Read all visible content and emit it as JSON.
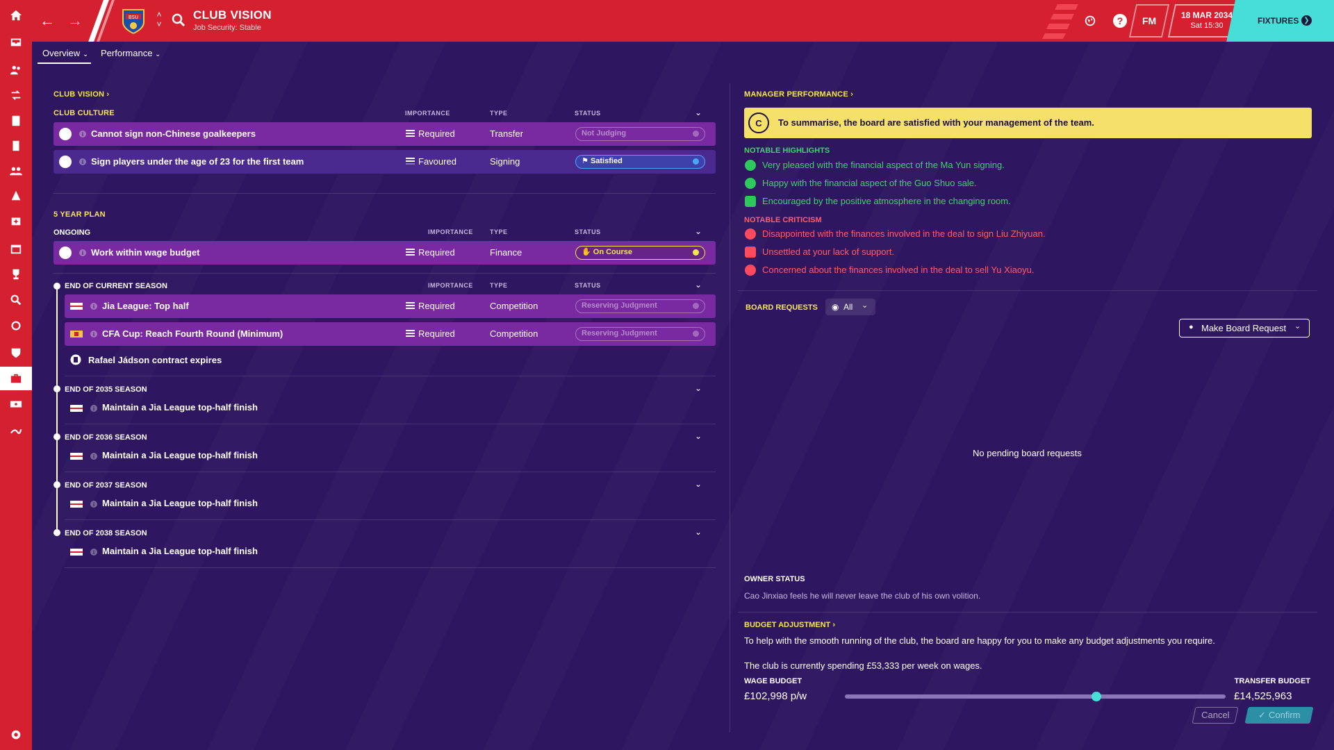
{
  "header": {
    "title": "CLUB VISION",
    "subtitle": "Job Security: Stable",
    "crest_text": "BSU",
    "fm_label": "FM",
    "date": "18 MAR 2034",
    "time": "Sat 15:30",
    "fixtures_label": "FIXTURES",
    "help_label": "?"
  },
  "tabs": [
    {
      "label": "Overview"
    },
    {
      "label": "Performance"
    }
  ],
  "club_vision": {
    "title": "CLUB VISION",
    "culture": {
      "title": "CLUB CULTURE",
      "columns": {
        "importance": "IMPORTANCE",
        "type": "TYPE",
        "status": "STATUS"
      },
      "rows": [
        {
          "title": "Cannot sign non-Chinese goalkeepers",
          "importance": "Required",
          "type": "Transfer",
          "status": "Not Judging"
        },
        {
          "title": "Sign players under the age of 23 for the first team",
          "importance": "Favoured",
          "type": "Signing",
          "status": "Satisfied"
        }
      ]
    },
    "plan": {
      "title": "5 YEAR PLAN",
      "ongoing": {
        "title": "ONGOING",
        "columns": {
          "importance": "IMPORTANCE",
          "type": "TYPE",
          "status": "STATUS"
        },
        "rows": [
          {
            "title": "Work within wage budget",
            "importance": "Required",
            "type": "Finance",
            "status": "On Course"
          }
        ]
      },
      "current": {
        "title": "END OF CURRENT SEASON",
        "columns": {
          "importance": "IMPORTANCE",
          "type": "TYPE",
          "status": "STATUS"
        },
        "rows": [
          {
            "title": "Jia League: Top half",
            "importance": "Required",
            "type": "Competition",
            "status": "Reserving Judgment"
          },
          {
            "title": "CFA Cup: Reach Fourth Round (Minimum)",
            "importance": "Required",
            "type": "Competition",
            "status": "Reserving Judgment"
          }
        ],
        "note": "Rafael Jádson contract expires"
      },
      "seasons": [
        {
          "title": "END OF 2035 SEASON",
          "item": "Maintain a Jia League top-half finish"
        },
        {
          "title": "END OF 2036 SEASON",
          "item": "Maintain a Jia League top-half finish"
        },
        {
          "title": "END OF 2037 SEASON",
          "item": "Maintain a Jia League top-half finish"
        },
        {
          "title": "END OF 2038 SEASON",
          "item": "Maintain a Jia League top-half finish"
        }
      ]
    }
  },
  "manager_performance": {
    "title": "MANAGER PERFORMANCE",
    "grade": "C",
    "summary": "To summarise, the board are satisfied with your management of the team.",
    "highlights_title": "NOTABLE HIGHLIGHTS",
    "highlights": [
      "Very pleased with the financial aspect of the Ma Yun signing.",
      "Happy with the financial aspect of the Guo Shuo sale.",
      "Encouraged by the positive atmosphere in the changing room."
    ],
    "criticism_title": "NOTABLE CRITICISM",
    "criticism": [
      "Disappointed with the finances involved in the deal to sign Liu Zhiyuan.",
      "Unsettled at your lack of support.",
      "Concerned about the finances involved in the deal to sell Yu Xiaoyu."
    ]
  },
  "board_requests": {
    "title": "BOARD REQUESTS",
    "filter": "All",
    "make_request": "Make Board Request",
    "empty": "No pending board requests"
  },
  "owner": {
    "title": "OWNER STATUS",
    "text": "Cao Jinxiao feels he will never leave the club of his own volition."
  },
  "budget": {
    "title": "BUDGET ADJUSTMENT",
    "intro": "To help with the smooth running of the club, the board are happy for you to make any budget adjustments you require.",
    "spending": "The club is currently spending £53,333 per week on wages.",
    "wage_label": "WAGE BUDGET",
    "wage_value": "£102,998 p/w",
    "transfer_label": "TRANSFER BUDGET",
    "transfer_value": "£14,525,963",
    "slider_position": 0.66,
    "cancel": "Cancel",
    "confirm": "Confirm"
  },
  "colors": {
    "accent": "#d4202f",
    "background": "#2e1660",
    "highlight": "#f5e84a",
    "teal": "#46ded6"
  }
}
